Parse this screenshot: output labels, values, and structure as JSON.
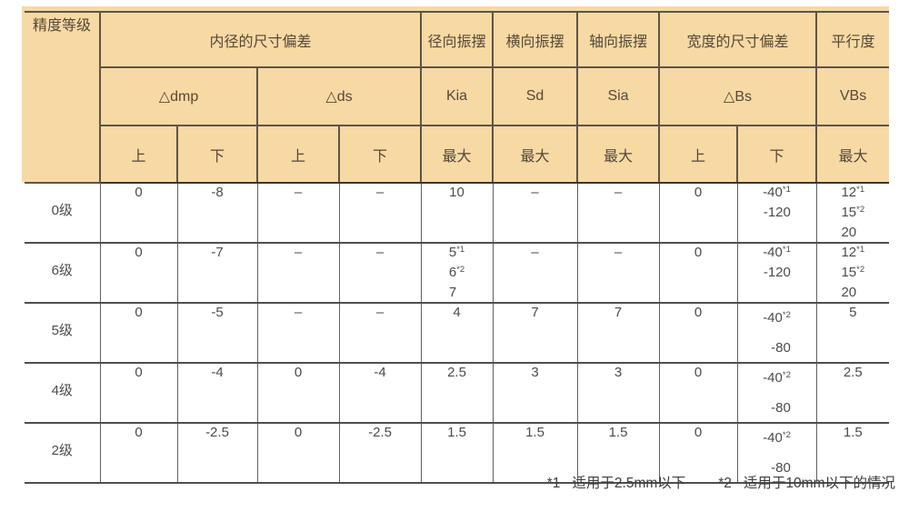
{
  "colors": {
    "header_bg": "#f7d9a3",
    "header_text": "#55483a",
    "body_text": "#4b4b4b",
    "grid_line": "#4f4f4f"
  },
  "table": {
    "header": {
      "precision_grade": "精度等级",
      "group_bore": "内径的尺寸偏差",
      "group_radial_runout": "径向振摆",
      "group_lateral_runout": "横向振摆",
      "group_axial_runout": "轴向振摆",
      "group_width_dev": "宽度的尺寸偏差",
      "group_parallelism": "平行度",
      "sym_dmp": "△dmp",
      "sym_ds": "△ds",
      "sym_kia": "Kia",
      "sym_sd": "Sd",
      "sym_sia": "Sia",
      "sym_bs": "△Bs",
      "sym_vbs": "VBs",
      "upper": "上",
      "lower": "下",
      "max1": "最大",
      "max2": "最大",
      "max3": "最大",
      "max4": "最大"
    },
    "rows": [
      {
        "label": "0级",
        "dmp_upper": "0",
        "dmp_lower": "-8",
        "ds_upper": "–",
        "ds_lower": "–",
        "kia": [
          {
            "t": "10",
            "sup": ""
          }
        ],
        "sd": "–",
        "sia": "–",
        "bs_upper": "0",
        "bs_lower": [
          {
            "t": "-40",
            "sup": "*1"
          },
          {
            "t": "-120",
            "sup": ""
          }
        ],
        "vbs": [
          {
            "t": "12",
            "sup": "*1"
          },
          {
            "t": "15",
            "sup": "*2"
          },
          {
            "t": "20",
            "sup": ""
          }
        ]
      },
      {
        "label": "6级",
        "dmp_upper": "0",
        "dmp_lower": "-7",
        "ds_upper": "–",
        "ds_lower": "–",
        "kia": [
          {
            "t": "5",
            "sup": "*1"
          },
          {
            "t": "6",
            "sup": "*2"
          },
          {
            "t": "7",
            "sup": ""
          }
        ],
        "sd": "–",
        "sia": "–",
        "bs_upper": "0",
        "bs_lower": [
          {
            "t": "-40",
            "sup": "*1"
          },
          {
            "t": "-120",
            "sup": ""
          }
        ],
        "vbs": [
          {
            "t": "12",
            "sup": "*1"
          },
          {
            "t": "15",
            "sup": "*2"
          },
          {
            "t": "20",
            "sup": ""
          }
        ]
      },
      {
        "label": "5级",
        "dmp_upper": "0",
        "dmp_lower": "-5",
        "ds_upper": "–",
        "ds_lower": "–",
        "kia": [
          {
            "t": "4",
            "sup": ""
          }
        ],
        "sd": "7",
        "sia": "7",
        "bs_upper": "0",
        "bs_lower": [
          {
            "t": "-40",
            "sup": "*2"
          },
          {
            "t": "-80",
            "sup": ""
          }
        ],
        "vbs": [
          {
            "t": "5",
            "sup": ""
          }
        ]
      },
      {
        "label": "4级",
        "dmp_upper": "0",
        "dmp_lower": "-4",
        "ds_upper": "0",
        "ds_lower": "-4",
        "kia": [
          {
            "t": "2.5",
            "sup": ""
          }
        ],
        "sd": "3",
        "sia": "3",
        "bs_upper": "0",
        "bs_lower": [
          {
            "t": "-40",
            "sup": "*2"
          },
          {
            "t": "-80",
            "sup": ""
          }
        ],
        "vbs": [
          {
            "t": "2.5",
            "sup": ""
          }
        ]
      },
      {
        "label": "2级",
        "dmp_upper": "0",
        "dmp_lower": "-2.5",
        "ds_upper": "0",
        "ds_lower": "-2.5",
        "kia": [
          {
            "t": "1.5",
            "sup": ""
          }
        ],
        "sd": "1.5",
        "sia": "1.5",
        "bs_upper": "0",
        "bs_lower": [
          {
            "t": "-40",
            "sup": "*2"
          },
          {
            "t": "-80",
            "sup": ""
          }
        ],
        "vbs": [
          {
            "t": "1.5",
            "sup": ""
          }
        ]
      }
    ]
  },
  "footnotes": {
    "note1_marker": "*1",
    "note1_text": "适用于2.5mm以下",
    "note2_marker": "*2",
    "note2_text": "适用于10mm以下的情况"
  }
}
